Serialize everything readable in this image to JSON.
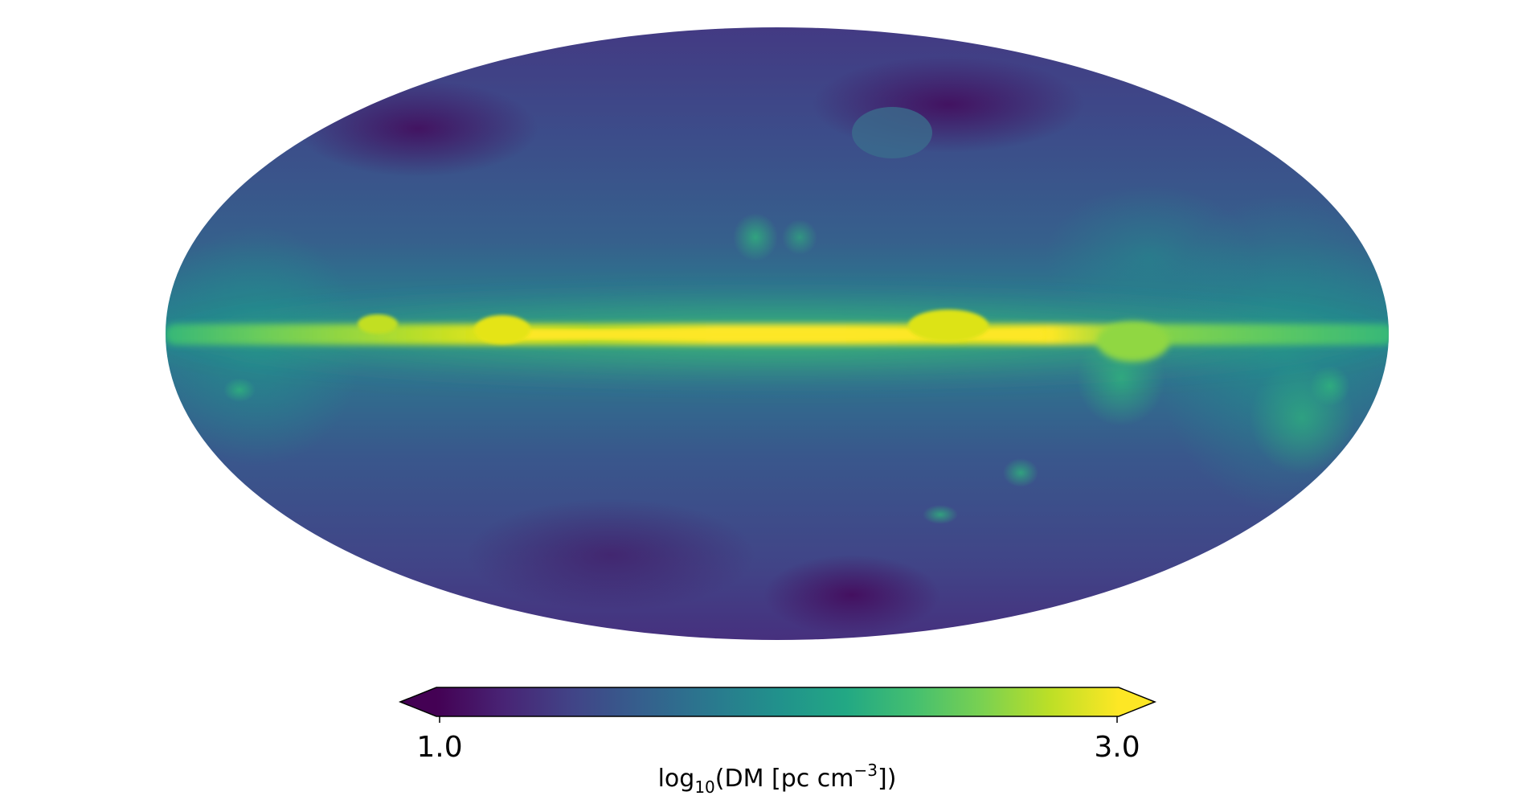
{
  "map": {
    "projection": "mollweide",
    "quantity": "dispersion measure",
    "color_scale": "viridis",
    "colors": {
      "low": "#440154",
      "mid_low": "#3b528b",
      "mid": "#21918c",
      "mid_high": "#5ec962",
      "high": "#fde725",
      "background": "#ffffff"
    },
    "features": [
      {
        "name": "galactic-plane",
        "description_level": "high"
      },
      {
        "name": "northern-loops",
        "description_level": "medium"
      },
      {
        "name": "southern-clouds",
        "description_level": "medium"
      }
    ]
  },
  "colorbar": {
    "min": 1.0,
    "max": 3.0,
    "tick_min_label": "1.0",
    "tick_max_label": "3.0",
    "extend": "both",
    "label": {
      "prefix": "log",
      "sub": "10",
      "body": "(DM [pc cm",
      "sup": "−3",
      "suffix": "])"
    }
  }
}
